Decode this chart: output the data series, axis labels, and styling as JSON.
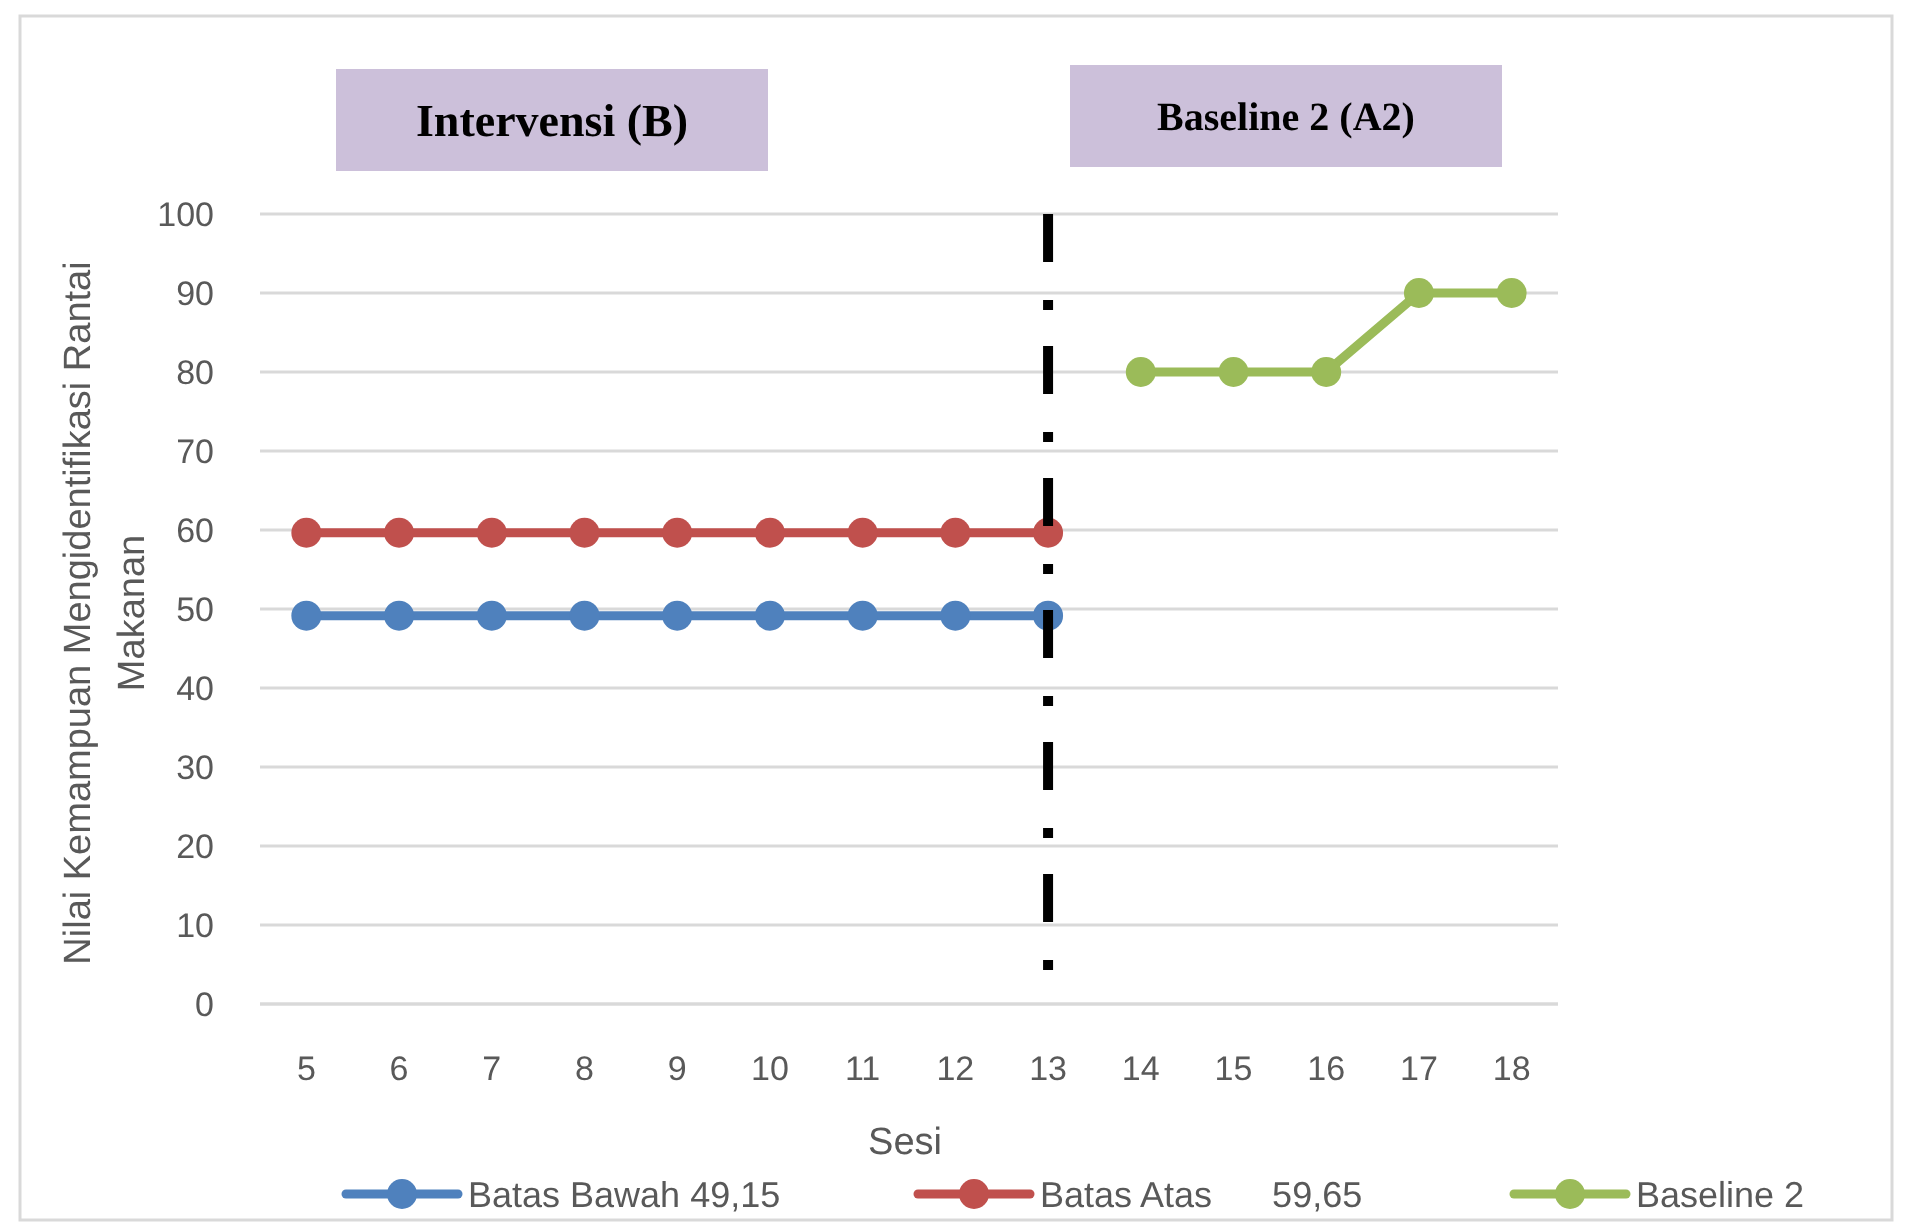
{
  "chart_data": {
    "type": "line",
    "xlabel": "Sesi",
    "ylabel": "Nilai Kemampuan Mengidentifikasi Rantai Makanan",
    "categories": [
      "5",
      "6",
      "7",
      "8",
      "9",
      "10",
      "11",
      "12",
      "13",
      "14",
      "15",
      "16",
      "17",
      "18"
    ],
    "series": [
      {
        "name": "Batas Bawah 49,15",
        "color": "#4f81bd",
        "values": [
          49.15,
          49.15,
          49.15,
          49.15,
          49.15,
          49.15,
          49.15,
          49.15,
          49.15,
          null,
          null,
          null,
          null,
          null
        ]
      },
      {
        "name": "Batas Atas      59,65",
        "color": "#c0504d",
        "values": [
          59.65,
          59.65,
          59.65,
          59.65,
          59.65,
          59.65,
          59.65,
          59.65,
          59.65,
          null,
          null,
          null,
          null,
          null
        ]
      },
      {
        "name": "Baseline 2",
        "color": "#9bbb59",
        "values": [
          null,
          null,
          null,
          null,
          null,
          null,
          null,
          null,
          null,
          80,
          80,
          80,
          90,
          90
        ]
      }
    ],
    "ylim": [
      0,
      100
    ],
    "yticks": [
      0,
      10,
      20,
      30,
      40,
      50,
      60,
      70,
      80,
      90,
      100
    ],
    "ref_lines": [
      {
        "axis": "x",
        "value": "13",
        "color": "#000000",
        "line_style": "dashdot"
      }
    ],
    "annotations": [
      "Intervensi (B)",
      "Baseline 2 (A2)"
    ],
    "grid": "y",
    "legend": "bottom",
    "marker": "circle",
    "line_style": "solid"
  }
}
